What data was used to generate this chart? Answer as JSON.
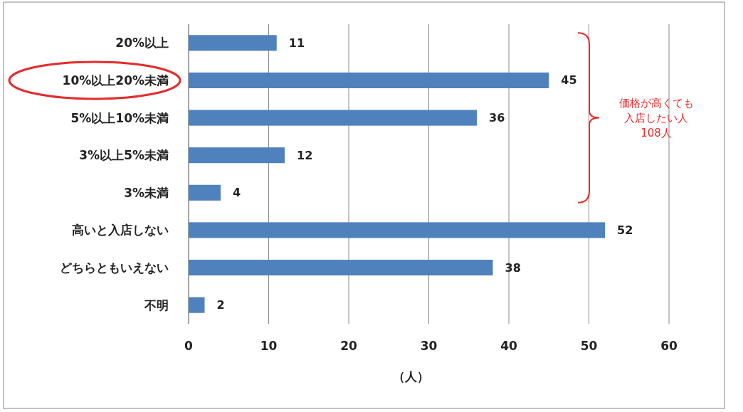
{
  "chart_data": {
    "type": "bar",
    "orientation": "horizontal",
    "categories": [
      "20%以上",
      "10%以上20%未満",
      "5%以上10%未満",
      "3%以上5%未満",
      "3%未満",
      "高いと入店しない",
      "どちらともいえない",
      "不明"
    ],
    "values": [
      11,
      45,
      36,
      12,
      4,
      52,
      38,
      2
    ],
    "color": "#4f81bd",
    "xlim": [
      0,
      60
    ],
    "xticks": [
      0,
      10,
      20,
      30,
      40,
      50,
      60
    ],
    "xlabel": "（人）",
    "grid": "x",
    "data_labels": true,
    "annotations": [
      "価格が高くても",
      "入店したい人",
      "108人"
    ]
  }
}
